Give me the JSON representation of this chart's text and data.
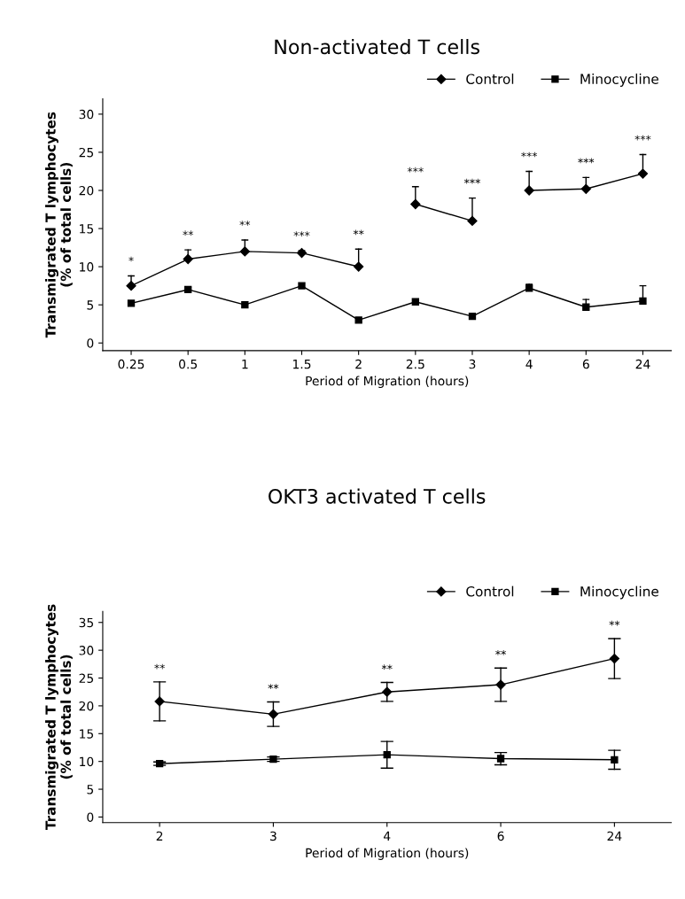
{
  "chart_data": [
    {
      "type": "line",
      "title": "Non-activated T cells",
      "xlabel": "Period of Migration (hours)",
      "ylabel": "Transmigrated T lymphocytes\n(% of total cells)",
      "categories": [
        "0.25",
        "0.5",
        "1",
        "1.5",
        "2",
        "2.5",
        "3",
        "4",
        "6",
        "24"
      ],
      "series": [
        {
          "name": "Control",
          "color": "#000000",
          "marker": "diamond",
          "values": [
            7.5,
            11,
            12,
            11.8,
            10,
            null,
            null,
            null,
            null,
            null
          ],
          "errors": [
            [
              7.5,
              8.8
            ],
            [
              11,
              12.2
            ],
            [
              12,
              13.5
            ],
            [
              11.8,
              12.1
            ],
            [
              10,
              12.3
            ],
            null,
            null,
            null,
            null,
            null
          ]
        },
        {
          "color": "#000000",
          "marker": "diamond",
          "values": [
            null,
            null,
            null,
            null,
            null,
            18.2,
            16,
            null,
            null,
            null
          ],
          "errors": [
            null,
            null,
            null,
            null,
            null,
            [
              18.2,
              20.5
            ],
            [
              16,
              19
            ],
            null,
            null,
            null
          ]
        },
        {
          "color": "#000000",
          "marker": "diamond",
          "values": [
            null,
            null,
            null,
            null,
            null,
            null,
            null,
            20,
            20.2,
            22.2
          ],
          "errors": [
            null,
            null,
            null,
            null,
            null,
            null,
            null,
            [
              20,
              22.5
            ],
            [
              20.2,
              21.7
            ],
            [
              22.2,
              24.7
            ]
          ]
        },
        {
          "name": "Minocycline",
          "color": "#000000",
          "marker": "square",
          "values": [
            5.2,
            7,
            5,
            7.5,
            3,
            5.4,
            3.5,
            7.2,
            4.7,
            5.5
          ],
          "errors": [
            null,
            [
              7,
              7.3
            ],
            null,
            null,
            null,
            null,
            null,
            [
              7.2,
              7.7
            ],
            [
              4.7,
              5.7
            ],
            [
              5.5,
              7.5
            ]
          ]
        }
      ],
      "ylim": [
        -1,
        32
      ],
      "yticks": [
        0,
        5,
        10,
        15,
        20,
        25,
        30
      ],
      "grid": false,
      "legend": "top right",
      "annotations": [
        "*",
        "**",
        "**",
        "***",
        "**",
        "***",
        "***",
        "***",
        "***",
        "***"
      ]
    },
    {
      "type": "line",
      "title": "OKT3 activated T cells",
      "xlabel": "Period of Migration (hours)",
      "ylabel": "Transmigrated T lymphocytes\n(% of total cells)",
      "categories": [
        "2",
        "3",
        "4",
        "6",
        "24"
      ],
      "series": [
        {
          "name": "Control",
          "color": "#000000",
          "marker": "diamond",
          "values": [
            20.8,
            18.5,
            22.5,
            23.8,
            28.5
          ],
          "errors": [
            3.5,
            2.2,
            1.7,
            3,
            3.6
          ]
        },
        {
          "name": "Minocycline",
          "color": "#000000",
          "marker": "square",
          "values": [
            9.6,
            10.4,
            11.2,
            10.5,
            10.3
          ],
          "errors": [
            0.3,
            0.4,
            2.4,
            1.1,
            1.7
          ]
        }
      ],
      "ylim": [
        -1,
        37
      ],
      "yticks": [
        0,
        5,
        10,
        15,
        20,
        25,
        30,
        35
      ],
      "grid": false,
      "legend": "top right",
      "annotations": [
        "**",
        "**",
        "**",
        "**",
        "**"
      ]
    }
  ]
}
